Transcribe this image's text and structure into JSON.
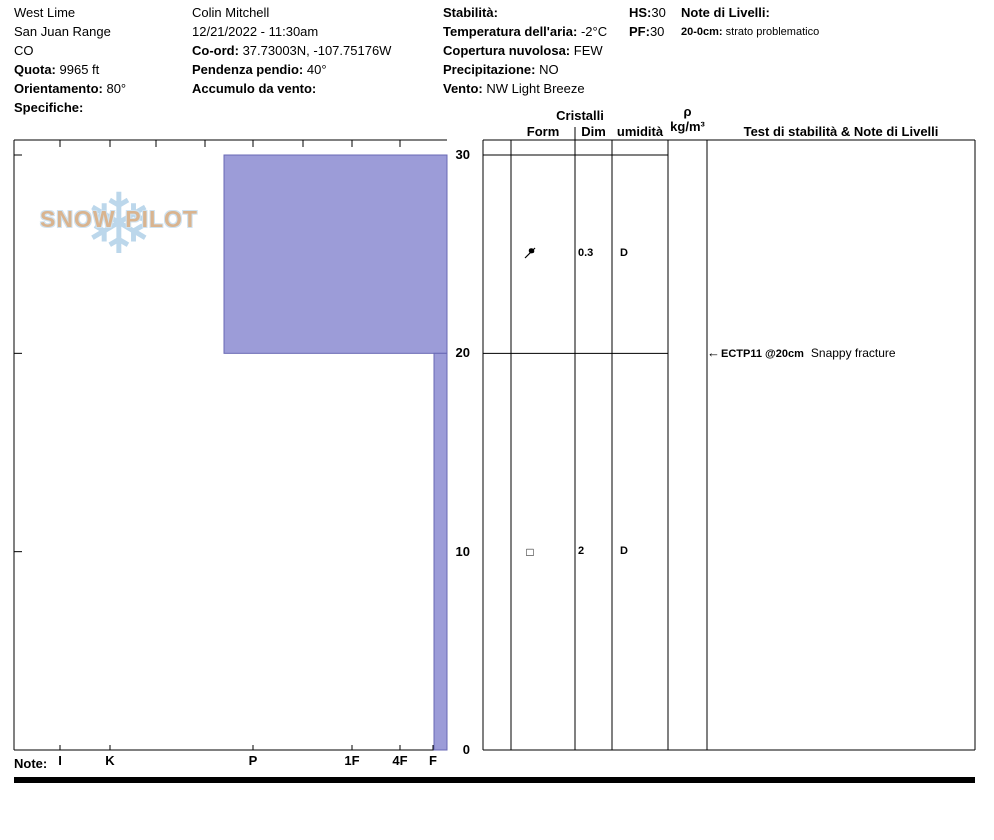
{
  "header": {
    "site": {
      "name": "West Lime",
      "range": "San Juan Range",
      "state": "CO",
      "elevation_label": "Quota:",
      "elevation_value": "9965 ft",
      "aspect_label": "Orientamento:",
      "aspect_value": "80°",
      "specifics_label": "Specifiche:"
    },
    "observer": {
      "name": "Colin Mitchell",
      "datetime": "12/21/2022 - 11:30am",
      "coord_label": "Co-ord:",
      "coord_value": "37.73003N, -107.75176W",
      "slope_label": "Pendenza pendio:",
      "slope_value": "40°",
      "wind_loading_label": "Accumulo da vento:"
    },
    "conditions": {
      "stability_label": "Stabilità:",
      "hs_label": "HS:",
      "hs_value": "30",
      "air_temp_label": "Temperatura dell'aria:",
      "air_temp_value": "-2°C",
      "pf_label": "PF:",
      "pf_value": "30",
      "sky_label": "Copertura nuvolosa:",
      "sky_value": "FEW",
      "precip_label": "Precipitazione:",
      "precip_value": "NO",
      "wind_label": "Vento:",
      "wind_value": "NW Light Breeze"
    },
    "layer_notes": {
      "title": "Note di Livelli:",
      "entry_range": "20-0cm:",
      "entry_text": "strato problematico"
    }
  },
  "logo": {
    "word1": "SNOW",
    "word2": "PILOT"
  },
  "table_headers": {
    "cristalli": "Cristalli",
    "form": "Form",
    "dim": "Dim",
    "moisture": "umidità",
    "rho": "ρ",
    "rho_unit": "kg/m³",
    "tests": "Test di stabilità & Note di Livelli"
  },
  "footer": {
    "note_label": "Note:"
  },
  "chart_data": {
    "type": "snow-profile",
    "depth_unit": "cm",
    "total_depth_cm": 30,
    "depth_ticks": [
      30,
      20,
      10,
      0
    ],
    "hardness_categories": [
      "I",
      "K",
      "P",
      "1F",
      "4F",
      "F"
    ],
    "layers": [
      {
        "top_cm": 30,
        "bottom_cm": 20,
        "hardness": "P"
      },
      {
        "top_cm": 20,
        "bottom_cm": 0,
        "hardness": "F"
      }
    ],
    "layer_boundary_depths_cm": [
      30,
      20
    ],
    "grains": [
      {
        "depth_cm": 25,
        "form": "DF",
        "dim_mm": "0.3",
        "moisture": "D"
      },
      {
        "depth_cm": 10,
        "form": "FC",
        "dim_mm": "2",
        "moisture": "D"
      }
    ],
    "tests": [
      {
        "depth_cm": 20,
        "label": "ECTP11 @20cm",
        "note": "Snappy fracture"
      }
    ],
    "bar_color": "#9c9cd8",
    "bar_border_color": "#6868b4"
  }
}
